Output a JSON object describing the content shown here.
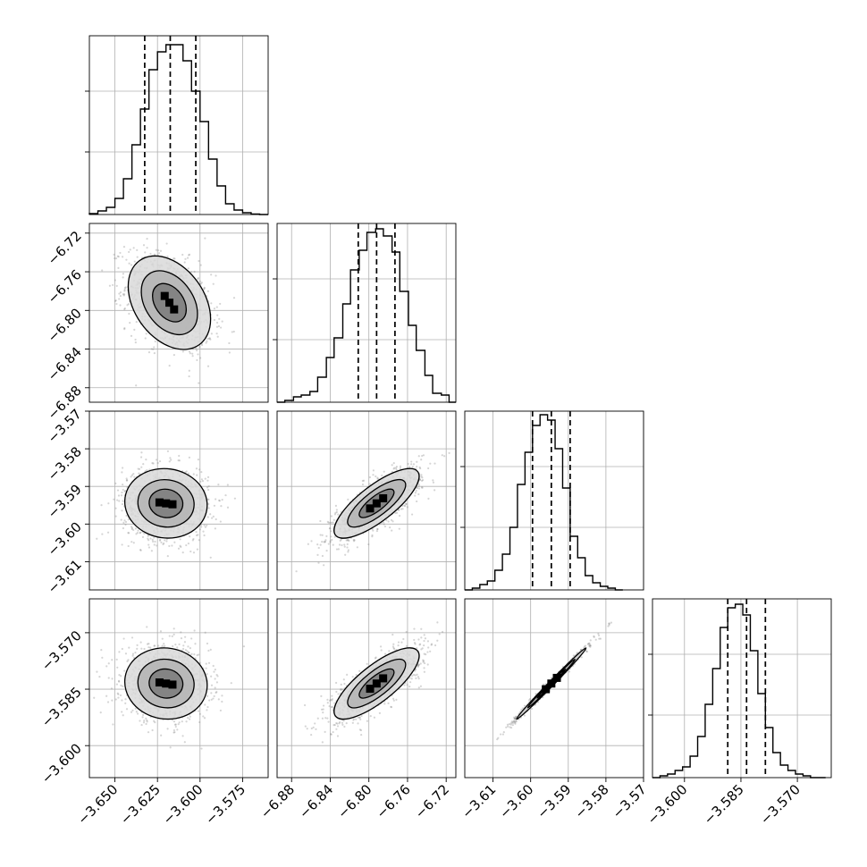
{
  "chart_data": {
    "type": "scatter",
    "subtype": "corner",
    "title": "",
    "grid": true,
    "parameters": [
      {
        "index": 0,
        "range": [
          -3.665,
          -3.56
        ],
        "ticks": [
          -3.65,
          -3.625,
          -3.6,
          -3.575
        ],
        "tick_labels": [
          "−3.650",
          "−3.625",
          "−3.600",
          "−3.575"
        ],
        "quantiles": [
          -3.6325,
          -3.6175,
          -3.6025
        ],
        "histogram": {
          "bin_edges": [
            -3.665,
            -3.66,
            -3.655,
            -3.65,
            -3.645,
            -3.64,
            -3.635,
            -3.63,
            -3.625,
            -3.62,
            -3.615,
            -3.61,
            -3.605,
            -3.6,
            -3.595,
            -3.59,
            -3.585,
            -3.58,
            -3.575,
            -3.57,
            -3.565,
            -3.56
          ],
          "counts": [
            0.005,
            0.02,
            0.04,
            0.09,
            0.2,
            0.39,
            0.59,
            0.81,
            0.91,
            0.95,
            0.95,
            0.86,
            0.69,
            0.52,
            0.31,
            0.16,
            0.06,
            0.025,
            0.01,
            0.003,
            0.0
          ]
        }
      },
      {
        "index": 1,
        "range": [
          -6.895,
          -6.71
        ],
        "ticks": [
          -6.88,
          -6.84,
          -6.8,
          -6.76,
          -6.72
        ],
        "tick_labels": [
          "−6.88",
          "−6.84",
          "−6.80",
          "−6.76",
          "−6.72"
        ],
        "quantiles": [
          -6.811,
          -6.792,
          -6.773
        ],
        "histogram": {
          "bin_edges": [
            -6.895,
            -6.887,
            -6.878,
            -6.87,
            -6.861,
            -6.853,
            -6.844,
            -6.836,
            -6.827,
            -6.819,
            -6.81,
            -6.802,
            -6.793,
            -6.785,
            -6.776,
            -6.768,
            -6.759,
            -6.751,
            -6.742,
            -6.734,
            -6.725,
            -6.717,
            -6.71
          ],
          "counts": [
            0.0,
            0.01,
            0.03,
            0.04,
            0.06,
            0.14,
            0.25,
            0.36,
            0.55,
            0.74,
            0.85,
            0.95,
            0.97,
            0.93,
            0.84,
            0.62,
            0.43,
            0.29,
            0.15,
            0.05,
            0.04,
            0.0
          ]
        }
      },
      {
        "index": 2,
        "range": [
          -3.6175,
          -3.57
        ],
        "ticks": [
          -3.61,
          -3.6,
          -3.59,
          -3.58,
          -3.57
        ],
        "tick_labels": [
          "−3.61",
          "−3.60",
          "−3.59",
          "−3.58",
          "−3.57"
        ],
        "quantiles": [
          -3.5995,
          -3.5945,
          -3.5895
        ],
        "histogram": {
          "bin_edges": [
            -3.6175,
            -3.6155,
            -3.6135,
            -3.6115,
            -3.6095,
            -3.6075,
            -3.6055,
            -3.6035,
            -3.6015,
            -3.5995,
            -3.5975,
            -3.5955,
            -3.5935,
            -3.5915,
            -3.5895,
            -3.5875,
            -3.5855,
            -3.5835,
            -3.5815,
            -3.5795,
            -3.5775,
            -3.5755
          ],
          "counts": [
            0.0,
            0.01,
            0.03,
            0.05,
            0.11,
            0.2,
            0.35,
            0.59,
            0.77,
            0.92,
            0.98,
            0.95,
            0.79,
            0.57,
            0.3,
            0.18,
            0.08,
            0.04,
            0.02,
            0.01,
            0.0
          ]
        }
      },
      {
        "index": 3,
        "range": [
          -3.6085,
          -3.561
        ],
        "ticks": [
          -3.6,
          -3.585,
          -3.57
        ],
        "tick_labels": [
          "−3.600",
          "−3.585",
          "−3.570"
        ],
        "quantiles": [
          -3.5885,
          -3.5835,
          -3.5785
        ],
        "histogram": {
          "bin_edges": [
            -3.6085,
            -3.6065,
            -3.6045,
            -3.6025,
            -3.6005,
            -3.5985,
            -3.5965,
            -3.5945,
            -3.5925,
            -3.5905,
            -3.5885,
            -3.5865,
            -3.5845,
            -3.5825,
            -3.5805,
            -3.5785,
            -3.5765,
            -3.5745,
            -3.5725,
            -3.5705,
            -3.5685,
            -3.5665,
            -3.5645,
            -3.5625
          ],
          "counts": [
            0.0,
            0.01,
            0.02,
            0.04,
            0.06,
            0.12,
            0.23,
            0.41,
            0.61,
            0.84,
            0.95,
            0.97,
            0.91,
            0.71,
            0.47,
            0.28,
            0.14,
            0.07,
            0.04,
            0.02,
            0.01,
            0.0,
            0.0
          ]
        }
      }
    ],
    "pairs": [
      {
        "x": 0,
        "y": 1,
        "mean": [
          -3.618,
          -6.792
        ],
        "sd": [
          0.011,
          0.022
        ],
        "corr": -0.35
      },
      {
        "x": 0,
        "y": 2,
        "mean": [
          -3.62,
          -3.5945
        ],
        "sd": [
          0.011,
          0.0042
        ],
        "corr": -0.05
      },
      {
        "x": 0,
        "y": 3,
        "mean": [
          -3.62,
          -3.5835
        ],
        "sd": [
          0.011,
          0.0043
        ],
        "corr": -0.05
      },
      {
        "x": 1,
        "y": 2,
        "mean": [
          -6.792,
          -3.5945
        ],
        "sd": [
          0.02,
          0.0042
        ],
        "corr": 0.78
      },
      {
        "x": 1,
        "y": 3,
        "mean": [
          -6.792,
          -3.5835
        ],
        "sd": [
          0.02,
          0.0043
        ],
        "corr": 0.78
      },
      {
        "x": 2,
        "y": 3,
        "mean": [
          -3.5945,
          -3.5835
        ],
        "sd": [
          0.0042,
          0.0043
        ],
        "corr": 0.995
      }
    ]
  }
}
